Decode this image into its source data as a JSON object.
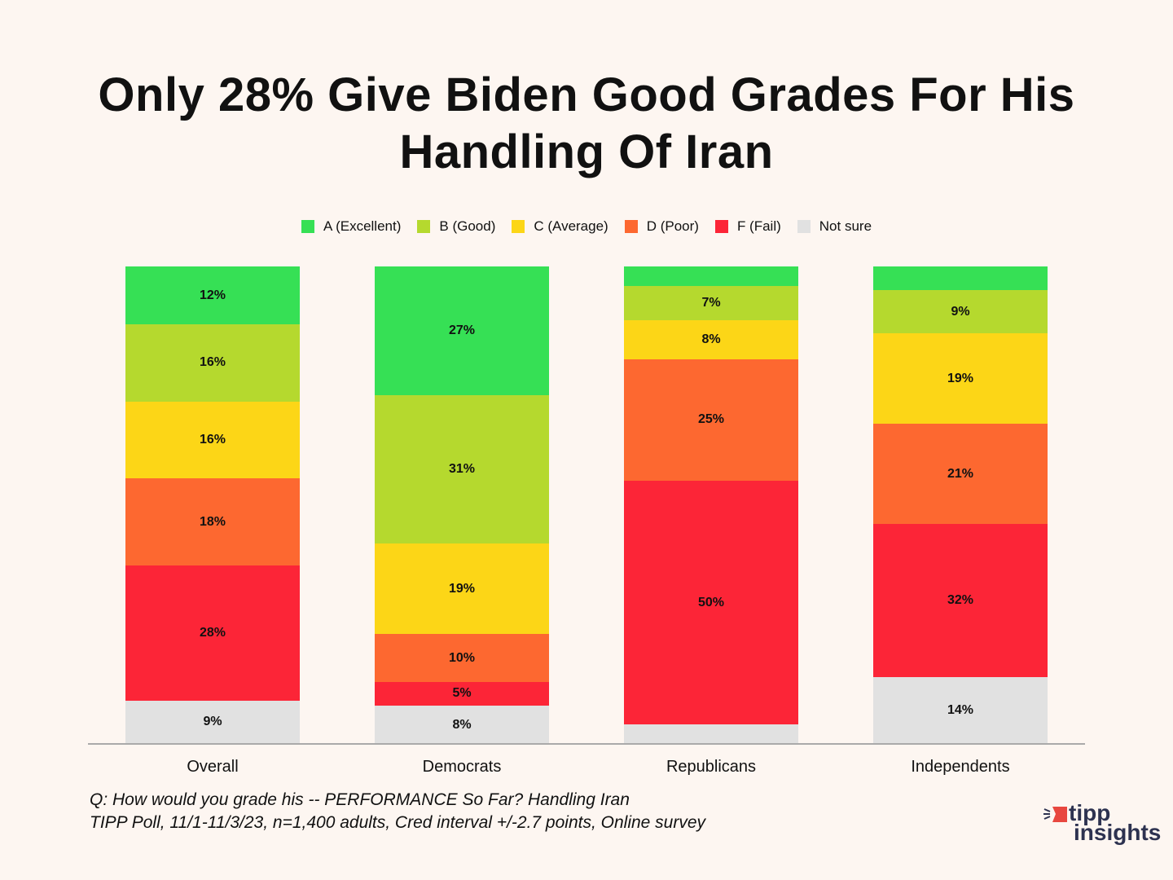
{
  "chart_data": {
    "type": "bar",
    "stacked": true,
    "title": "Only 28% Give Biden Good Grades For His Handling Of Iran",
    "categories": [
      "Overall",
      "Democrats",
      "Republicans",
      "Independents"
    ],
    "series": [
      {
        "name": "A (Excellent)",
        "color": "#36e055",
        "values": [
          12,
          27,
          4,
          5
        ],
        "labels": [
          "12%",
          "27%",
          null,
          null
        ]
      },
      {
        "name": "B (Good)",
        "color": "#b5d92e",
        "values": [
          16,
          31,
          7,
          9
        ],
        "labels": [
          "16%",
          "31%",
          "7%",
          "9%"
        ]
      },
      {
        "name": "C (Average)",
        "color": "#fcd617",
        "values": [
          16,
          19,
          8,
          19
        ],
        "labels": [
          "16%",
          "19%",
          "8%",
          "19%"
        ]
      },
      {
        "name": "D (Poor)",
        "color": "#fd6830",
        "values": [
          18,
          10,
          25,
          21
        ],
        "labels": [
          "18%",
          "10%",
          "25%",
          "21%"
        ]
      },
      {
        "name": "F (Fail)",
        "color": "#fc2537",
        "values": [
          28,
          5,
          50,
          32
        ],
        "labels": [
          "28%",
          "5%",
          "50%",
          "32%"
        ]
      },
      {
        "name": "Not sure",
        "color": "#e1e1e1",
        "values": [
          9,
          8,
          4,
          14
        ],
        "labels": [
          "9%",
          "8%",
          null,
          "14%"
        ]
      }
    ],
    "legend_position": "top-center",
    "grid": false
  },
  "footnote": {
    "question": "Q:  How would you grade his -- PERFORMANCE So Far? Handling Iran",
    "source": "TIPP Poll, 11/1-11/3/23, n=1,400 adults, Cred interval +/-2.7 points, Online survey"
  },
  "logo": {
    "line1": "tipp",
    "line2": "insights"
  }
}
